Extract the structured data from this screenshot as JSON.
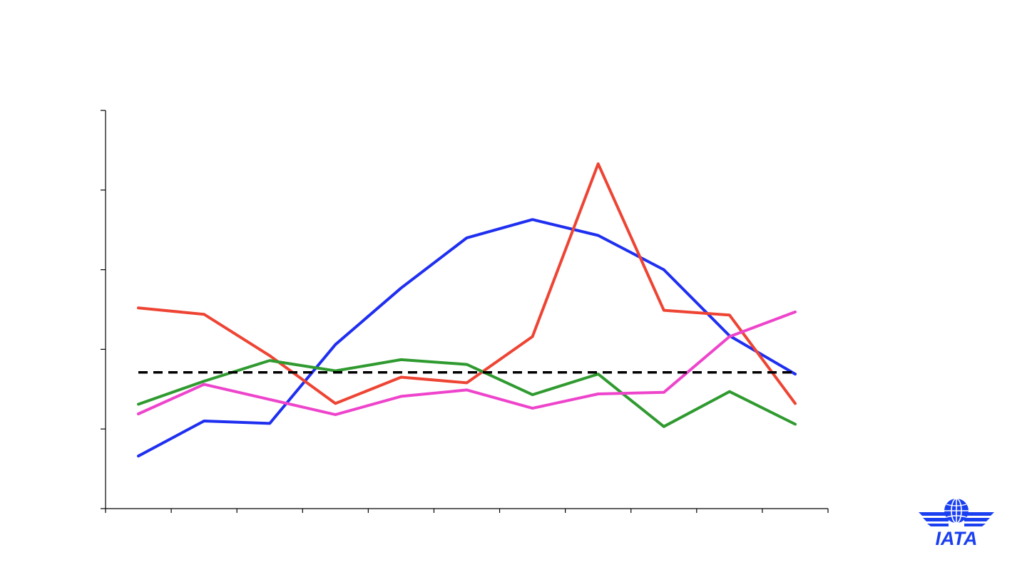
{
  "chart_data": {
    "type": "line",
    "title": "",
    "xlabel": "",
    "ylabel": "",
    "ylim": [
      0,
      5
    ],
    "x_count": 11,
    "y_ticks": [
      0,
      1,
      2,
      3,
      4,
      5
    ],
    "grid": false,
    "legend": "none",
    "series": [
      {
        "color": "#1f2ff0",
        "style": "solid",
        "values": [
          0.66,
          1.1,
          1.07,
          2.06,
          2.77,
          3.4,
          3.63,
          3.43,
          3.0,
          2.17,
          1.69
        ]
      },
      {
        "color": "#ee4433",
        "style": "solid",
        "values": [
          2.52,
          2.44,
          1.92,
          1.32,
          1.65,
          1.58,
          2.16,
          4.33,
          2.49,
          2.43,
          1.32
        ]
      },
      {
        "color": "#2f9a2f",
        "style": "solid",
        "values": [
          1.31,
          1.6,
          1.86,
          1.73,
          1.87,
          1.81,
          1.43,
          1.69,
          1.03,
          1.47,
          1.06
        ]
      },
      {
        "color": "#ee44cc",
        "style": "solid",
        "values": [
          1.19,
          1.56,
          1.37,
          1.18,
          1.41,
          1.49,
          1.26,
          1.44,
          1.46,
          2.16,
          2.47
        ]
      },
      {
        "color": "#000000",
        "style": "dashed",
        "values": [
          1.71,
          1.71,
          1.71,
          1.71,
          1.71,
          1.71,
          1.71,
          1.71,
          1.71,
          1.71,
          1.71
        ]
      }
    ]
  },
  "logo": {
    "text": "IATA",
    "color": "#1a3ff0",
    "icon": "globe-wings-icon"
  }
}
